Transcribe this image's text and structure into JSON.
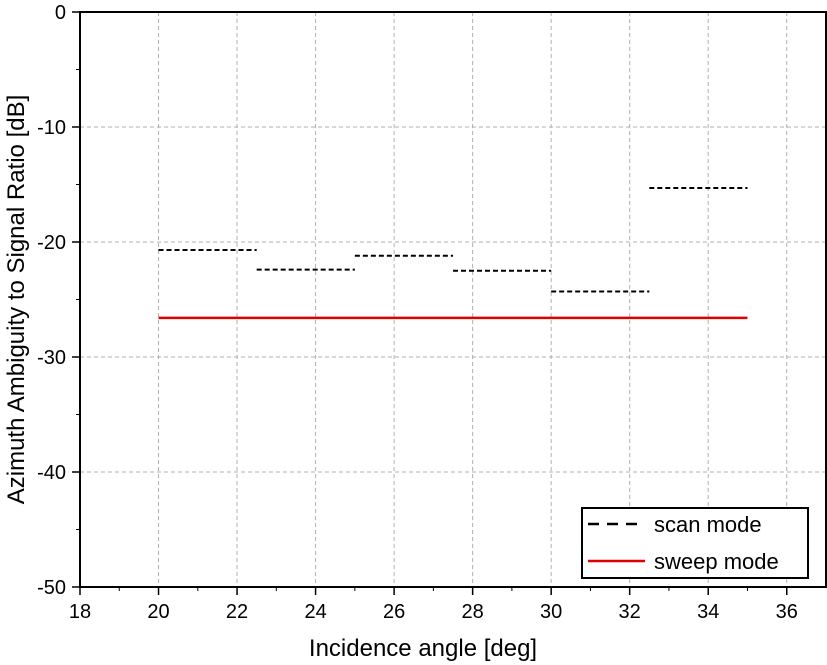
{
  "chart_data": {
    "type": "line",
    "xlabel": "Incidence angle [deg]",
    "ylabel": "Azimuth Ambiguity to Signal Ratio [dB]",
    "xlim": [
      18,
      37
    ],
    "ylim": [
      -50,
      0
    ],
    "xticks": [
      18,
      20,
      22,
      24,
      26,
      28,
      30,
      32,
      34,
      36
    ],
    "yticks": [
      0,
      -10,
      -20,
      -30,
      -40,
      -50
    ],
    "grid": true,
    "legend_position": "bottom-right",
    "series": [
      {
        "name": "scan mode",
        "style": "dashed",
        "color": "#000000",
        "segments": [
          {
            "x": [
              20.0,
              22.5
            ],
            "y": [
              -20.7,
              -20.7
            ]
          },
          {
            "x": [
              22.5,
              25.0
            ],
            "y": [
              -22.4,
              -22.4
            ]
          },
          {
            "x": [
              25.0,
              27.5
            ],
            "y": [
              -21.2,
              -21.2
            ]
          },
          {
            "x": [
              27.5,
              30.0
            ],
            "y": [
              -22.5,
              -22.5
            ]
          },
          {
            "x": [
              30.0,
              32.5
            ],
            "y": [
              -24.3,
              -24.3
            ]
          },
          {
            "x": [
              32.5,
              35.0
            ],
            "y": [
              -15.3,
              -15.3
            ]
          }
        ]
      },
      {
        "name": "sweep mode",
        "style": "solid",
        "color": "#e00000",
        "segments": [
          {
            "x": [
              20.0,
              35.0
            ],
            "y": [
              -26.6,
              -26.6
            ]
          }
        ]
      }
    ]
  }
}
